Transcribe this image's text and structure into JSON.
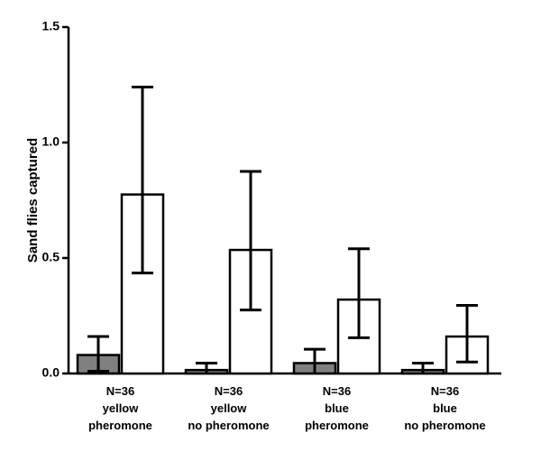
{
  "chart_data": {
    "type": "bar",
    "title": "",
    "xlabel": "",
    "ylabel": "Sand flies captured",
    "ylim": [
      0,
      1.5
    ],
    "yticks": [
      "0.0",
      "0.5",
      "1.0",
      "1.5"
    ],
    "yticks_values": [
      0,
      0.5,
      1.0,
      1.5
    ],
    "grid": false,
    "categories": [
      [
        "N=36",
        "yellow",
        "pheromone"
      ],
      [
        "N=36",
        "yellow",
        "no pheromone"
      ],
      [
        "N=36",
        "blue",
        "pheromone"
      ],
      [
        "N=36",
        "blue",
        "no pheromone"
      ]
    ],
    "series": [
      {
        "color": "#808080",
        "values": [
          0.08,
          0.015,
          0.045,
          0.015
        ],
        "error_low": [
          0.01,
          0.0,
          0.0,
          0.0
        ],
        "error_high": [
          0.16,
          0.045,
          0.105,
          0.045
        ]
      },
      {
        "color": "#ffffff",
        "values": [
          0.775,
          0.535,
          0.32,
          0.16
        ],
        "error_low": [
          0.435,
          0.275,
          0.155,
          0.05
        ],
        "error_high": [
          1.24,
          0.875,
          0.54,
          0.295
        ]
      }
    ]
  }
}
